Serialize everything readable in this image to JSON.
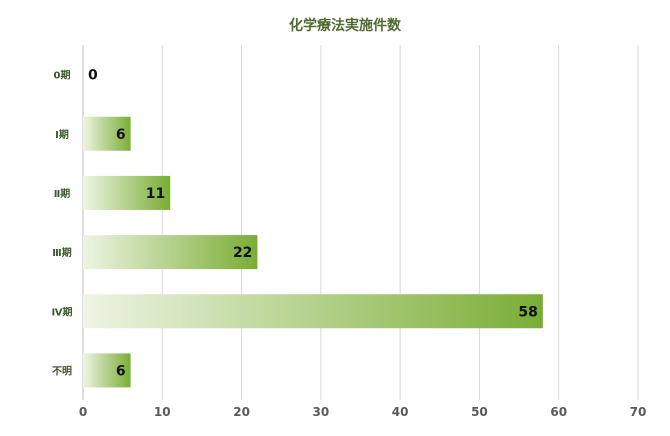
{
  "chart_data": {
    "type": "bar",
    "orientation": "horizontal",
    "title": "化学療法実施件数",
    "categories": [
      "0期",
      "Ⅰ期",
      "Ⅱ期",
      "Ⅲ期",
      "Ⅳ期",
      "不明"
    ],
    "values": [
      0,
      6,
      11,
      22,
      58,
      6
    ],
    "data_labels": [
      "0",
      "6",
      "11",
      "22",
      "58",
      "6"
    ],
    "xlim": [
      0,
      70
    ],
    "x_ticks": [
      "0",
      "10",
      "20",
      "30",
      "40",
      "50",
      "60",
      "70"
    ],
    "grid": "vertical",
    "legend": "none"
  },
  "colors": {
    "title": "#4f6b2e",
    "bar_start": "#eef5e4",
    "bar_end": "#7aad35",
    "grid": "#d9d9d9",
    "axis": "#bfbfbf"
  }
}
